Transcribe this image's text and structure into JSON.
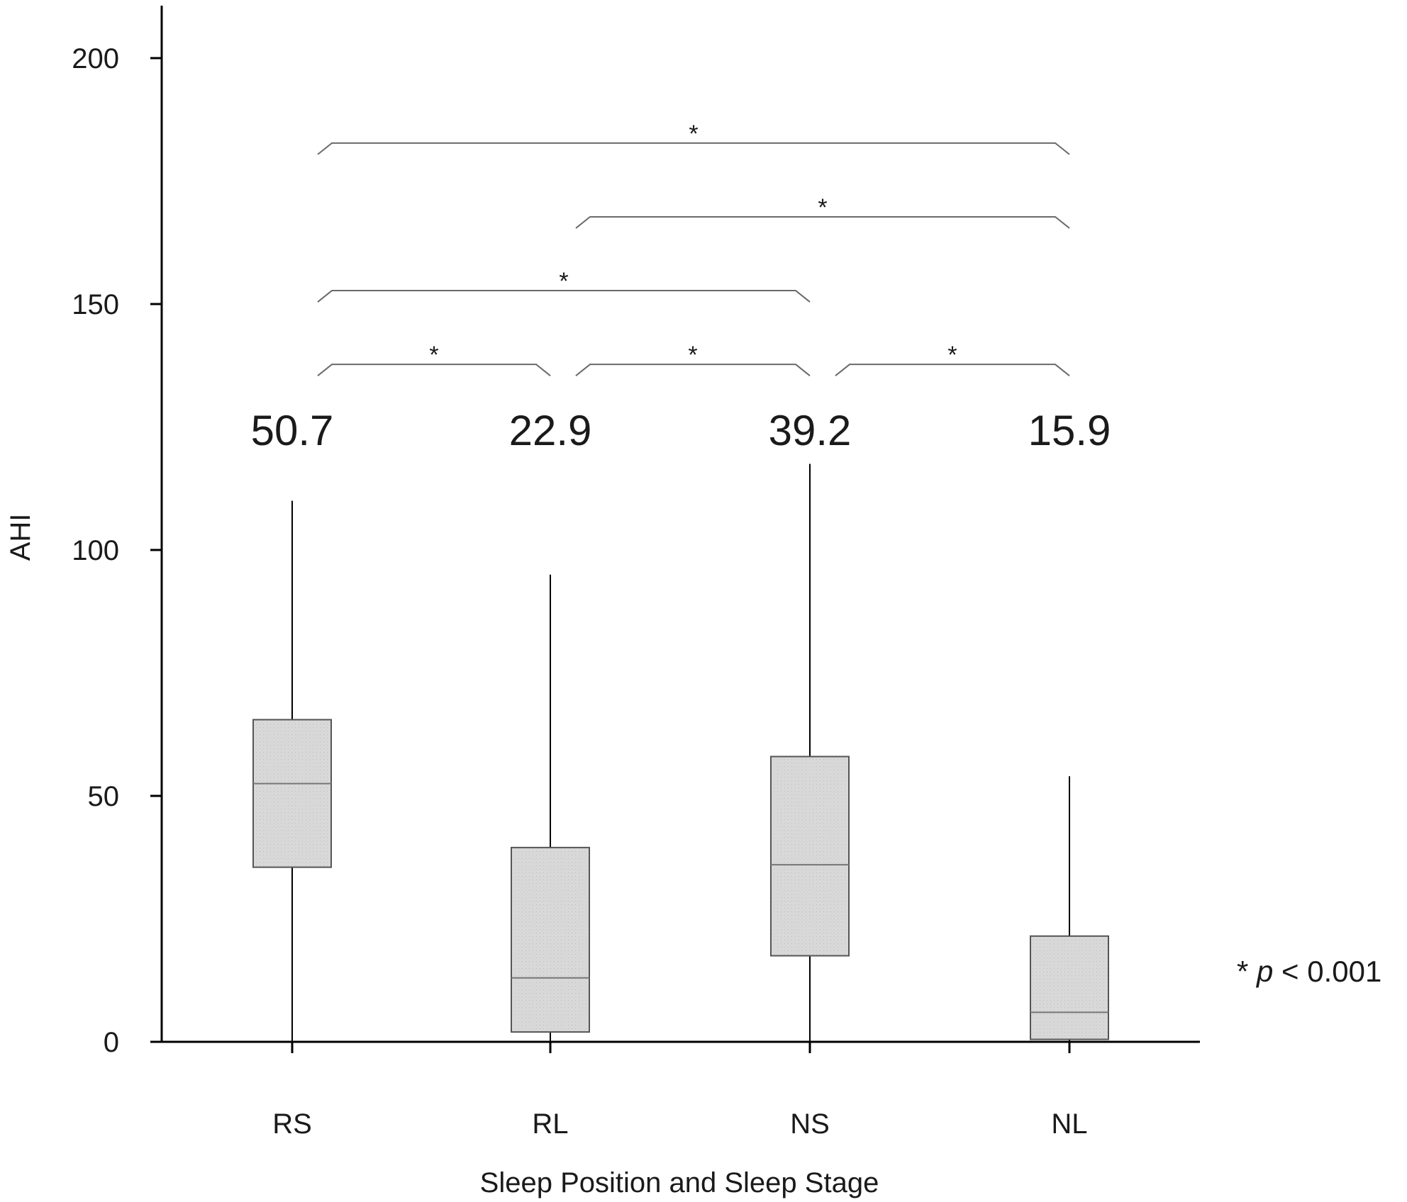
{
  "chart_data": {
    "type": "box",
    "categories": [
      "RS",
      "RL",
      "NS",
      "NL"
    ],
    "boxes": [
      {
        "category": "RS",
        "min": 0,
        "q1": 35.5,
        "median": 52.5,
        "q3": 65.5,
        "max": 110
      },
      {
        "category": "RL",
        "min": 0,
        "q1": 2,
        "median": 13,
        "q3": 39.5,
        "max": 95
      },
      {
        "category": "NS",
        "min": 0,
        "q1": 17.5,
        "median": 36,
        "q3": 58,
        "max": 117.5
      },
      {
        "category": "NL",
        "min": 0,
        "q1": 0.5,
        "median": 6,
        "q3": 21.5,
        "max": 54
      }
    ],
    "mean_labels": [
      "50.7",
      "22.9",
      "39.2",
      "15.9"
    ],
    "ylabel": "AHI",
    "xlabel": "Sleep Position and Sleep Stage",
    "ylim": [
      0,
      210
    ],
    "yticks": [
      "0",
      "50",
      "100",
      "150",
      "200"
    ],
    "significance": [
      {
        "from": "RS",
        "to": "NL",
        "level": 181,
        "marker": "*"
      },
      {
        "from": "RL",
        "to": "NL",
        "level": 166,
        "marker": "*"
      },
      {
        "from": "RS",
        "to": "NS",
        "level": 151,
        "marker": "*"
      },
      {
        "from": "RS",
        "to": "RL",
        "level": 136,
        "marker": "*"
      },
      {
        "from": "RL",
        "to": "NS",
        "level": 136,
        "marker": "*"
      },
      {
        "from": "NS",
        "to": "NL",
        "level": 136,
        "marker": "*"
      }
    ],
    "note": {
      "star": "*",
      "p": "p",
      "rest": "< 0.001"
    },
    "box_fill": "#d9d9d9",
    "grid": false,
    "legend": "none"
  }
}
